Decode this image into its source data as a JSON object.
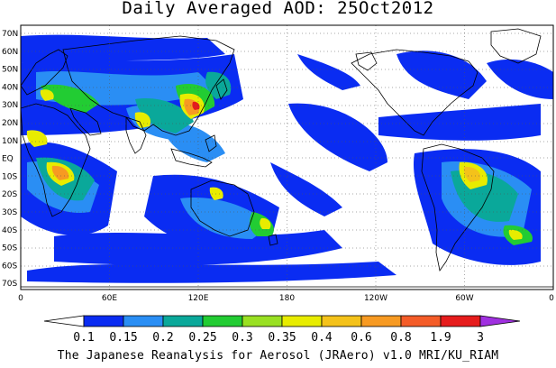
{
  "title": "Daily Averaged AOD: 25Oct2012",
  "lat_labels": [
    "70N",
    "60N",
    "50N",
    "40N",
    "30N",
    "20N",
    "10N",
    "EQ",
    "10S",
    "20S",
    "30S",
    "40S",
    "50S",
    "60S",
    "70S"
  ],
  "lon_labels": [
    "0",
    "60E",
    "120E",
    "180",
    "120W",
    "60W",
    "0"
  ],
  "colorbar": {
    "labels": [
      "0.1",
      "0.15",
      "0.2",
      "0.25",
      "0.3",
      "0.35",
      "0.4",
      "0.6",
      "0.8",
      "1.9",
      "3"
    ],
    "colors": [
      "#ffffff",
      "#0a2cf2",
      "#2a8ef4",
      "#0aa89a",
      "#22cc33",
      "#99e022",
      "#e8ec00",
      "#f4c21a",
      "#f79a22",
      "#f45c28",
      "#e61c1c",
      "#a030e0"
    ]
  },
  "footer": "The Japanese Reanalysis for Aerosol (JRAero) v1.0 MRI/KU_RIAM",
  "icons": {
    "map": "world-aod-map",
    "colorbar": "color-scale-bar"
  }
}
